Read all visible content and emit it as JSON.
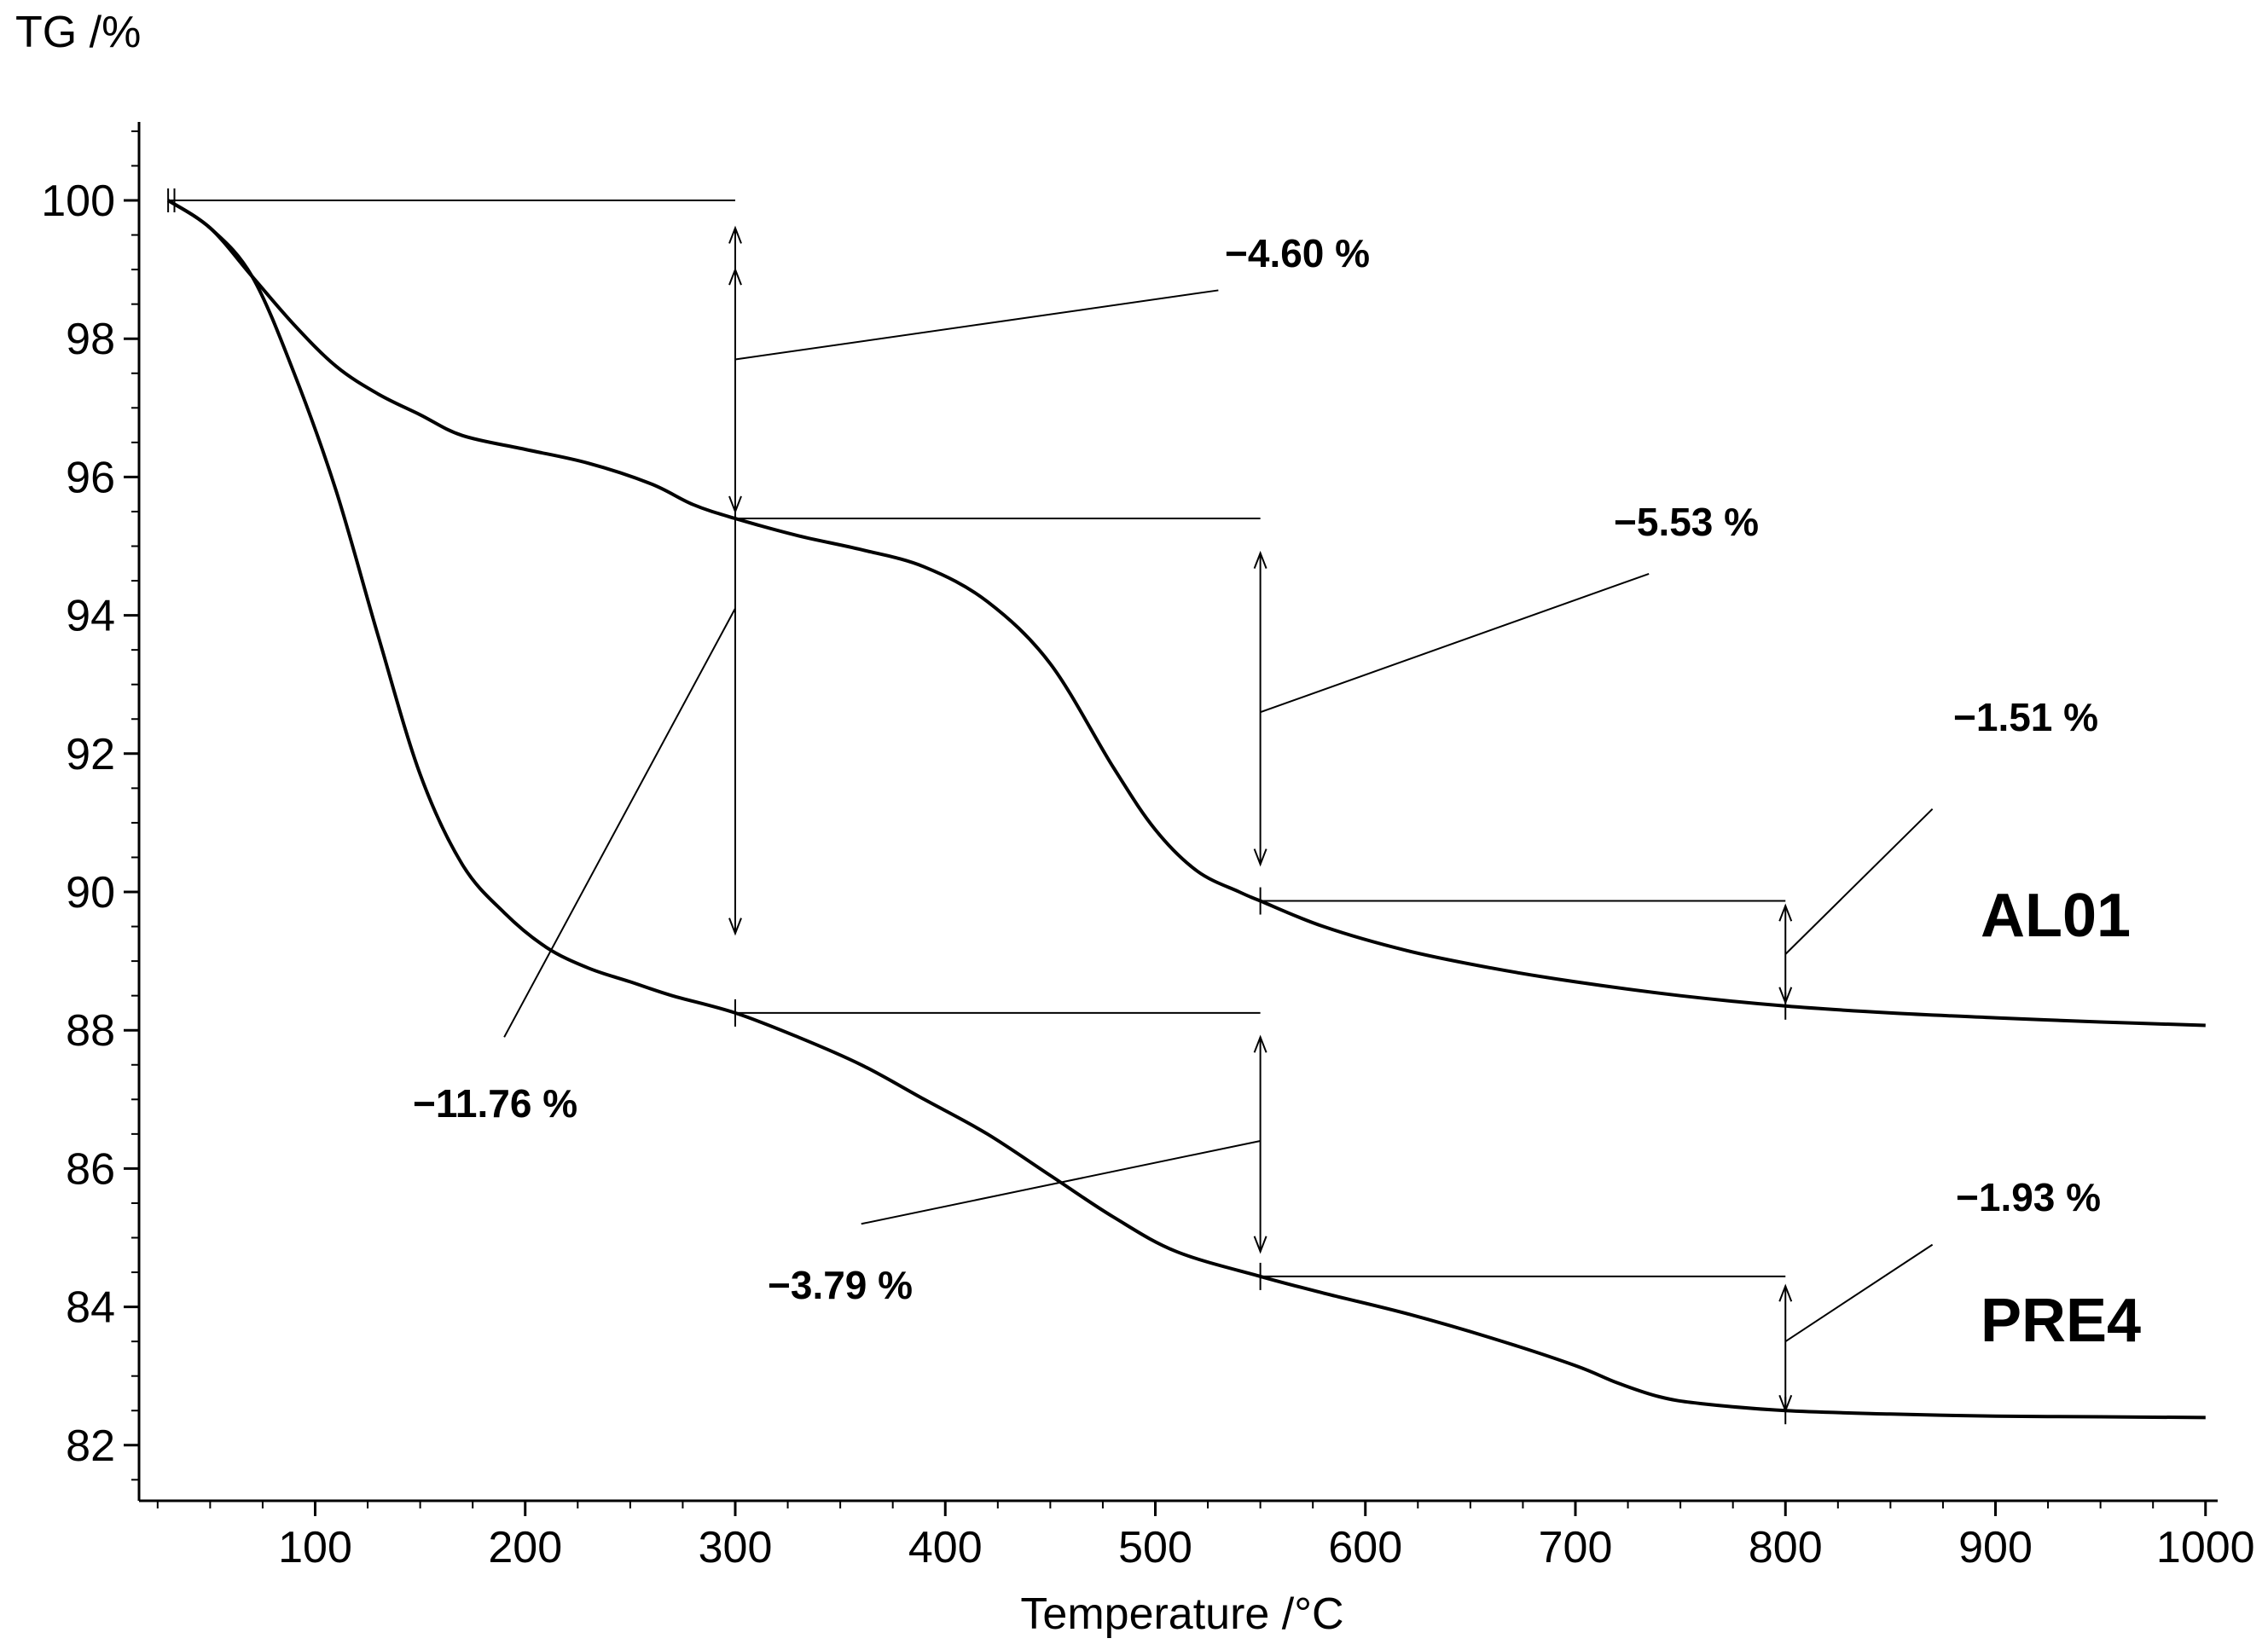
{
  "chart_data": {
    "type": "line",
    "title": "",
    "xlabel": "Temperature /°C",
    "ylabel": "TG /%",
    "xlim": [
      20,
      1000
    ],
    "ylim": [
      81.2,
      101.2
    ],
    "x_ticks": [
      100,
      200,
      300,
      400,
      500,
      600,
      700,
      800,
      900,
      1000
    ],
    "y_ticks": [
      82,
      84,
      86,
      88,
      90,
      92,
      94,
      96,
      98,
      100
    ],
    "x_tick_labels": [
      "100",
      "200",
      "300",
      "400",
      "500",
      "600",
      "700",
      "800",
      "900",
      "1000"
    ],
    "y_tick_labels": [
      "82",
      "84",
      "86",
      "88",
      "90",
      "92",
      "94",
      "96",
      "98",
      "100"
    ],
    "grid": false,
    "legend": "none",
    "series": [
      {
        "name": "AL01",
        "x": [
          30,
          50,
          70,
          90,
          110,
          130,
          150,
          170,
          200,
          230,
          260,
          280,
          300,
          330,
          360,
          390,
          420,
          450,
          480,
          500,
          520,
          540,
          550,
          580,
          620,
          660,
          700,
          750,
          800,
          850,
          900,
          950,
          1000
        ],
        "values": [
          100,
          99.6,
          98.9,
          98.2,
          97.6,
          97.2,
          96.9,
          96.6,
          96.4,
          96.2,
          95.9,
          95.6,
          95.4,
          95.15,
          94.95,
          94.7,
          94.2,
          93.3,
          91.8,
          90.9,
          90.3,
          90.0,
          89.87,
          89.5,
          89.15,
          88.9,
          88.7,
          88.5,
          88.35,
          88.25,
          88.18,
          88.12,
          88.07
        ]
      },
      {
        "name": "PRE4",
        "x": [
          30,
          50,
          70,
          90,
          110,
          130,
          150,
          170,
          190,
          210,
          230,
          250,
          270,
          300,
          330,
          360,
          390,
          420,
          450,
          480,
          510,
          550,
          580,
          620,
          660,
          700,
          720,
          740,
          760,
          800,
          850,
          900,
          950,
          1000
        ],
        "values": [
          100,
          99.6,
          98.9,
          97.5,
          95.8,
          93.7,
          91.7,
          90.4,
          89.7,
          89.2,
          88.9,
          88.7,
          88.5,
          88.25,
          87.9,
          87.5,
          87.0,
          86.5,
          85.9,
          85.3,
          84.8,
          84.44,
          84.2,
          83.9,
          83.55,
          83.15,
          82.9,
          82.7,
          82.6,
          82.5,
          82.45,
          82.42,
          82.41,
          82.4
        ]
      }
    ],
    "annotations": [
      {
        "text": "−4.60 %"
      },
      {
        "text": "−5.53 %"
      },
      {
        "text": "−1.51 %"
      },
      {
        "text": "−11.76 %"
      },
      {
        "text": "−3.79 %"
      },
      {
        "text": "−1.93 %"
      }
    ]
  }
}
